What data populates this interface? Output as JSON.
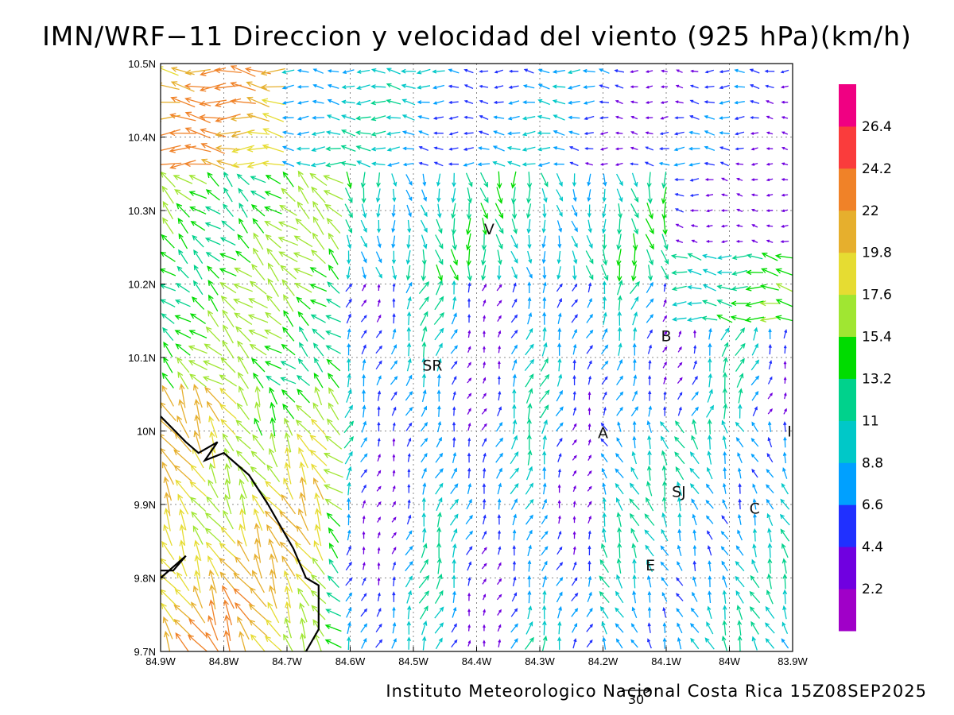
{
  "title": "IMN/WRF−11 Direccion y velocidad del viento (925 hPa)(km/h)",
  "footer": "Instituto Meteorologico Nacional Costa Rica 15Z08SEP2025",
  "reference_vector": {
    "label": "30",
    "speed": 30
  },
  "map": {
    "lon_range": [
      -84.9,
      -83.9
    ],
    "lat_range": [
      9.7,
      10.5
    ],
    "lon_ticks": [
      {
        "value": -84.9,
        "label": "84.9W"
      },
      {
        "value": -84.8,
        "label": "84.8W"
      },
      {
        "value": -84.7,
        "label": "84.7W"
      },
      {
        "value": -84.6,
        "label": "84.6W"
      },
      {
        "value": -84.5,
        "label": "84.5W"
      },
      {
        "value": -84.4,
        "label": "84.4W"
      },
      {
        "value": -84.3,
        "label": "84.3W"
      },
      {
        "value": -84.2,
        "label": "84.2W"
      },
      {
        "value": -84.1,
        "label": "84.1W"
      },
      {
        "value": -84.0,
        "label": "84W"
      },
      {
        "value": -83.9,
        "label": "83.9W"
      }
    ],
    "lat_ticks": [
      {
        "value": 9.7,
        "label": "9.7N"
      },
      {
        "value": 9.8,
        "label": "9.8N"
      },
      {
        "value": 9.9,
        "label": "9.9N"
      },
      {
        "value": 10.0,
        "label": "10N"
      },
      {
        "value": 10.1,
        "label": "10.1N"
      },
      {
        "value": 10.2,
        "label": "10.2N"
      },
      {
        "value": 10.3,
        "label": "10.3N"
      },
      {
        "value": 10.4,
        "label": "10.4N"
      },
      {
        "value": 10.5,
        "label": "10.5N"
      }
    ],
    "places": [
      {
        "label": "V",
        "lon": -84.38,
        "lat": 10.275
      },
      {
        "label": "SR",
        "lon": -84.47,
        "lat": 10.09
      },
      {
        "label": "B",
        "lon": -84.1,
        "lat": 10.13
      },
      {
        "label": "A",
        "lon": -84.2,
        "lat": 9.998
      },
      {
        "label": "SJ",
        "lon": -84.08,
        "lat": 9.918
      },
      {
        "label": "C",
        "lon": -83.96,
        "lat": 9.895
      },
      {
        "label": "E",
        "lon": -84.125,
        "lat": 9.818
      },
      {
        "label": "I",
        "lon": -83.905,
        "lat": 10.0
      }
    ],
    "coastline": [
      [
        [
          -84.9,
          10.02
        ],
        [
          -84.86,
          9.985
        ],
        [
          -84.84,
          9.97
        ],
        [
          -84.81,
          9.985
        ],
        [
          -84.83,
          9.96
        ],
        [
          -84.8,
          9.97
        ],
        [
          -84.76,
          9.94
        ],
        [
          -84.73,
          9.9
        ],
        [
          -84.71,
          9.87
        ],
        [
          -84.69,
          9.84
        ],
        [
          -84.67,
          9.8
        ],
        [
          -84.65,
          9.79
        ],
        [
          -84.65,
          9.73
        ],
        [
          -84.67,
          9.7
        ]
      ],
      [
        [
          -84.9,
          9.8
        ],
        [
          -84.86,
          9.83
        ],
        [
          -84.88,
          9.81
        ],
        [
          -84.9,
          9.81
        ]
      ]
    ]
  },
  "colorbar": {
    "colors": [
      "#a000c8",
      "#7000e0",
      "#2030ff",
      "#00a0ff",
      "#00c8c8",
      "#00d28c",
      "#00dc00",
      "#a0e632",
      "#e6dc32",
      "#e6af2d",
      "#f08228",
      "#fa3c3c",
      "#f00082"
    ],
    "labels": [
      "2.2",
      "4.4",
      "6.6",
      "8.8",
      "11",
      "13.2",
      "15.4",
      "17.6",
      "19.8",
      "22",
      "24.2",
      "26.4"
    ]
  }
}
